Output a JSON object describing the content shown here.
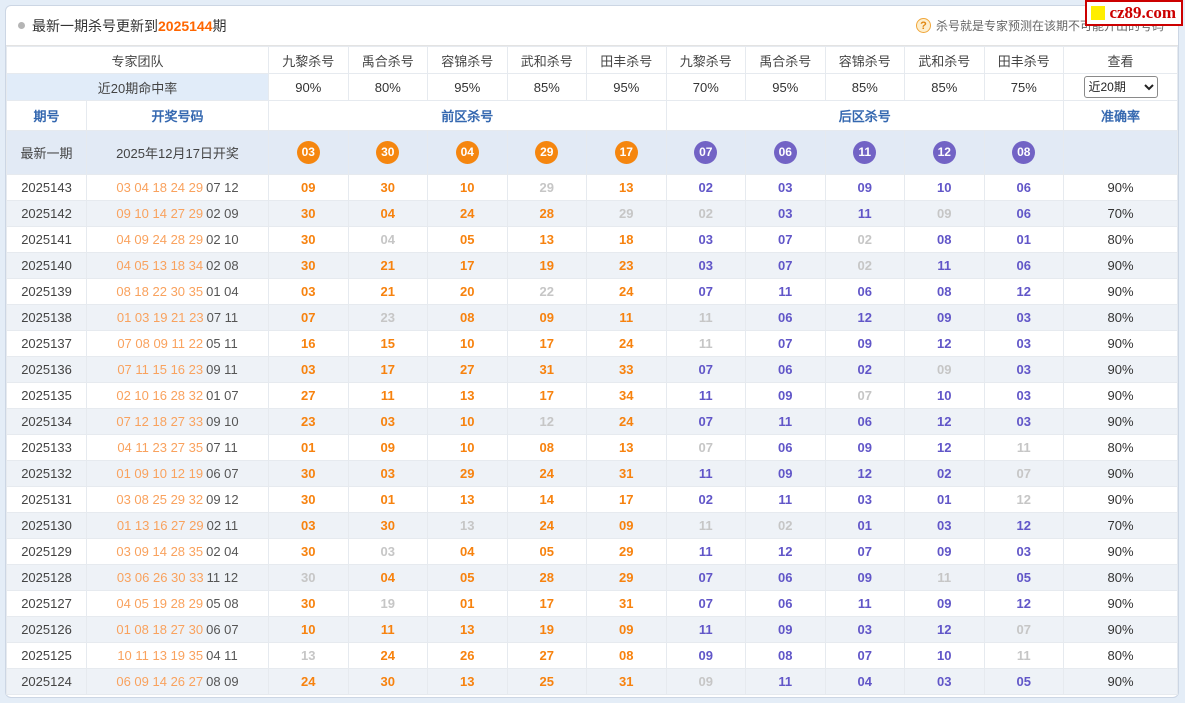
{
  "page": {
    "title_prefix": "最新一期杀号更新到",
    "title_issue": "2025144",
    "title_suffix": "期",
    "tip": "杀号就是专家预测在该期不可能开出的号码",
    "tip_icon": "?",
    "logo_text": "cz89.com"
  },
  "colors": {
    "front_hit": "#f7820e",
    "back_hit": "#6156c8",
    "miss": "#c6c6c6",
    "front_ball": "#f5860f",
    "back_ball": "#7263c5",
    "header_blue": "#3568b0",
    "accent_orange": "#ff6600"
  },
  "header": {
    "expert_team_label": "专家团队",
    "hit_rate_label": "近20期命中率",
    "view_label": "查看",
    "period_select_value": "近20期",
    "experts": [
      "九黎杀号",
      "禹合杀号",
      "容锦杀号",
      "武和杀号",
      "田丰杀号",
      "九黎杀号",
      "禹合杀号",
      "容锦杀号",
      "武和杀号",
      "田丰杀号"
    ],
    "hit_rates": [
      "90%",
      "80%",
      "95%",
      "85%",
      "95%",
      "70%",
      "95%",
      "85%",
      "85%",
      "75%"
    ],
    "issue_label": "期号",
    "draw_label": "开奖号码",
    "front_zone_label": "前区杀号",
    "back_zone_label": "后区杀号",
    "accuracy_label": "准确率"
  },
  "latest": {
    "issue_label": "最新一期",
    "draw_text": "2025年12月17日开奖",
    "front_balls": [
      "03",
      "30",
      "04",
      "29",
      "17"
    ],
    "back_balls": [
      "07",
      "06",
      "11",
      "12",
      "08"
    ]
  },
  "rows": [
    {
      "issue": "2025143",
      "front_draw": "03 04 18 24 29",
      "back_draw": "07 12",
      "front": [
        {
          "v": "09",
          "hit": true
        },
        {
          "v": "30",
          "hit": true
        },
        {
          "v": "10",
          "hit": true
        },
        {
          "v": "29",
          "hit": false
        },
        {
          "v": "13",
          "hit": true
        }
      ],
      "back": [
        {
          "v": "02",
          "hit": true
        },
        {
          "v": "03",
          "hit": true
        },
        {
          "v": "09",
          "hit": true
        },
        {
          "v": "10",
          "hit": true
        },
        {
          "v": "06",
          "hit": true
        }
      ],
      "accuracy": "90%"
    },
    {
      "issue": "2025142",
      "front_draw": "09 10 14 27 29",
      "back_draw": "02 09",
      "front": [
        {
          "v": "30",
          "hit": true
        },
        {
          "v": "04",
          "hit": true
        },
        {
          "v": "24",
          "hit": true
        },
        {
          "v": "28",
          "hit": true
        },
        {
          "v": "29",
          "hit": false
        }
      ],
      "back": [
        {
          "v": "02",
          "hit": false
        },
        {
          "v": "03",
          "hit": true
        },
        {
          "v": "11",
          "hit": true
        },
        {
          "v": "09",
          "hit": false
        },
        {
          "v": "06",
          "hit": true
        }
      ],
      "accuracy": "70%"
    },
    {
      "issue": "2025141",
      "front_draw": "04 09 24 28 29",
      "back_draw": "02 10",
      "front": [
        {
          "v": "30",
          "hit": true
        },
        {
          "v": "04",
          "hit": false
        },
        {
          "v": "05",
          "hit": true
        },
        {
          "v": "13",
          "hit": true
        },
        {
          "v": "18",
          "hit": true
        }
      ],
      "back": [
        {
          "v": "03",
          "hit": true
        },
        {
          "v": "07",
          "hit": true
        },
        {
          "v": "02",
          "hit": false
        },
        {
          "v": "08",
          "hit": true
        },
        {
          "v": "01",
          "hit": true
        }
      ],
      "accuracy": "80%"
    },
    {
      "issue": "2025140",
      "front_draw": "04 05 13 18 34",
      "back_draw": "02 08",
      "front": [
        {
          "v": "30",
          "hit": true
        },
        {
          "v": "21",
          "hit": true
        },
        {
          "v": "17",
          "hit": true
        },
        {
          "v": "19",
          "hit": true
        },
        {
          "v": "23",
          "hit": true
        }
      ],
      "back": [
        {
          "v": "03",
          "hit": true
        },
        {
          "v": "07",
          "hit": true
        },
        {
          "v": "02",
          "hit": false
        },
        {
          "v": "11",
          "hit": true
        },
        {
          "v": "06",
          "hit": true
        }
      ],
      "accuracy": "90%"
    },
    {
      "issue": "2025139",
      "front_draw": "08 18 22 30 35",
      "back_draw": "01 04",
      "front": [
        {
          "v": "03",
          "hit": true
        },
        {
          "v": "21",
          "hit": true
        },
        {
          "v": "20",
          "hit": true
        },
        {
          "v": "22",
          "hit": false
        },
        {
          "v": "24",
          "hit": true
        }
      ],
      "back": [
        {
          "v": "07",
          "hit": true
        },
        {
          "v": "11",
          "hit": true
        },
        {
          "v": "06",
          "hit": true
        },
        {
          "v": "08",
          "hit": true
        },
        {
          "v": "12",
          "hit": true
        }
      ],
      "accuracy": "90%"
    },
    {
      "issue": "2025138",
      "front_draw": "01 03 19 21 23",
      "back_draw": "07 11",
      "front": [
        {
          "v": "07",
          "hit": true
        },
        {
          "v": "23",
          "hit": false
        },
        {
          "v": "08",
          "hit": true
        },
        {
          "v": "09",
          "hit": true
        },
        {
          "v": "11",
          "hit": true
        }
      ],
      "back": [
        {
          "v": "11",
          "hit": false
        },
        {
          "v": "06",
          "hit": true
        },
        {
          "v": "12",
          "hit": true
        },
        {
          "v": "09",
          "hit": true
        },
        {
          "v": "03",
          "hit": true
        }
      ],
      "accuracy": "80%"
    },
    {
      "issue": "2025137",
      "front_draw": "07 08 09 11 22",
      "back_draw": "05 11",
      "front": [
        {
          "v": "16",
          "hit": true
        },
        {
          "v": "15",
          "hit": true
        },
        {
          "v": "10",
          "hit": true
        },
        {
          "v": "17",
          "hit": true
        },
        {
          "v": "24",
          "hit": true
        }
      ],
      "back": [
        {
          "v": "11",
          "hit": false
        },
        {
          "v": "07",
          "hit": true
        },
        {
          "v": "09",
          "hit": true
        },
        {
          "v": "12",
          "hit": true
        },
        {
          "v": "03",
          "hit": true
        }
      ],
      "accuracy": "90%"
    },
    {
      "issue": "2025136",
      "front_draw": "07 11 15 16 23",
      "back_draw": "09 11",
      "front": [
        {
          "v": "03",
          "hit": true
        },
        {
          "v": "17",
          "hit": true
        },
        {
          "v": "27",
          "hit": true
        },
        {
          "v": "31",
          "hit": true
        },
        {
          "v": "33",
          "hit": true
        }
      ],
      "back": [
        {
          "v": "07",
          "hit": true
        },
        {
          "v": "06",
          "hit": true
        },
        {
          "v": "02",
          "hit": true
        },
        {
          "v": "09",
          "hit": false
        },
        {
          "v": "03",
          "hit": true
        }
      ],
      "accuracy": "90%"
    },
    {
      "issue": "2025135",
      "front_draw": "02 10 16 28 32",
      "back_draw": "01 07",
      "front": [
        {
          "v": "27",
          "hit": true
        },
        {
          "v": "11",
          "hit": true
        },
        {
          "v": "13",
          "hit": true
        },
        {
          "v": "17",
          "hit": true
        },
        {
          "v": "34",
          "hit": true
        }
      ],
      "back": [
        {
          "v": "11",
          "hit": true
        },
        {
          "v": "09",
          "hit": true
        },
        {
          "v": "07",
          "hit": false
        },
        {
          "v": "10",
          "hit": true
        },
        {
          "v": "03",
          "hit": true
        }
      ],
      "accuracy": "90%"
    },
    {
      "issue": "2025134",
      "front_draw": "07 12 18 27 33",
      "back_draw": "09 10",
      "front": [
        {
          "v": "23",
          "hit": true
        },
        {
          "v": "03",
          "hit": true
        },
        {
          "v": "10",
          "hit": true
        },
        {
          "v": "12",
          "hit": false
        },
        {
          "v": "24",
          "hit": true
        }
      ],
      "back": [
        {
          "v": "07",
          "hit": true
        },
        {
          "v": "11",
          "hit": true
        },
        {
          "v": "06",
          "hit": true
        },
        {
          "v": "12",
          "hit": true
        },
        {
          "v": "03",
          "hit": true
        }
      ],
      "accuracy": "90%"
    },
    {
      "issue": "2025133",
      "front_draw": "04 11 23 27 35",
      "back_draw": "07 11",
      "front": [
        {
          "v": "01",
          "hit": true
        },
        {
          "v": "09",
          "hit": true
        },
        {
          "v": "10",
          "hit": true
        },
        {
          "v": "08",
          "hit": true
        },
        {
          "v": "13",
          "hit": true
        }
      ],
      "back": [
        {
          "v": "07",
          "hit": false
        },
        {
          "v": "06",
          "hit": true
        },
        {
          "v": "09",
          "hit": true
        },
        {
          "v": "12",
          "hit": true
        },
        {
          "v": "11",
          "hit": false
        }
      ],
      "accuracy": "80%"
    },
    {
      "issue": "2025132",
      "front_draw": "01 09 10 12 19",
      "back_draw": "06 07",
      "front": [
        {
          "v": "30",
          "hit": true
        },
        {
          "v": "03",
          "hit": true
        },
        {
          "v": "29",
          "hit": true
        },
        {
          "v": "24",
          "hit": true
        },
        {
          "v": "31",
          "hit": true
        }
      ],
      "back": [
        {
          "v": "11",
          "hit": true
        },
        {
          "v": "09",
          "hit": true
        },
        {
          "v": "12",
          "hit": true
        },
        {
          "v": "02",
          "hit": true
        },
        {
          "v": "07",
          "hit": false
        }
      ],
      "accuracy": "90%"
    },
    {
      "issue": "2025131",
      "front_draw": "03 08 25 29 32",
      "back_draw": "09 12",
      "front": [
        {
          "v": "30",
          "hit": true
        },
        {
          "v": "01",
          "hit": true
        },
        {
          "v": "13",
          "hit": true
        },
        {
          "v": "14",
          "hit": true
        },
        {
          "v": "17",
          "hit": true
        }
      ],
      "back": [
        {
          "v": "02",
          "hit": true
        },
        {
          "v": "11",
          "hit": true
        },
        {
          "v": "03",
          "hit": true
        },
        {
          "v": "01",
          "hit": true
        },
        {
          "v": "12",
          "hit": false
        }
      ],
      "accuracy": "90%"
    },
    {
      "issue": "2025130",
      "front_draw": "01 13 16 27 29",
      "back_draw": "02 11",
      "front": [
        {
          "v": "03",
          "hit": true
        },
        {
          "v": "30",
          "hit": true
        },
        {
          "v": "13",
          "hit": false
        },
        {
          "v": "24",
          "hit": true
        },
        {
          "v": "09",
          "hit": true
        }
      ],
      "back": [
        {
          "v": "11",
          "hit": false
        },
        {
          "v": "02",
          "hit": false
        },
        {
          "v": "01",
          "hit": true
        },
        {
          "v": "03",
          "hit": true
        },
        {
          "v": "12",
          "hit": true
        }
      ],
      "accuracy": "70%"
    },
    {
      "issue": "2025129",
      "front_draw": "03 09 14 28 35",
      "back_draw": "02 04",
      "front": [
        {
          "v": "30",
          "hit": true
        },
        {
          "v": "03",
          "hit": false
        },
        {
          "v": "04",
          "hit": true
        },
        {
          "v": "05",
          "hit": true
        },
        {
          "v": "29",
          "hit": true
        }
      ],
      "back": [
        {
          "v": "11",
          "hit": true
        },
        {
          "v": "12",
          "hit": true
        },
        {
          "v": "07",
          "hit": true
        },
        {
          "v": "09",
          "hit": true
        },
        {
          "v": "03",
          "hit": true
        }
      ],
      "accuracy": "90%"
    },
    {
      "issue": "2025128",
      "front_draw": "03 06 26 30 33",
      "back_draw": "11 12",
      "front": [
        {
          "v": "30",
          "hit": false
        },
        {
          "v": "04",
          "hit": true
        },
        {
          "v": "05",
          "hit": true
        },
        {
          "v": "28",
          "hit": true
        },
        {
          "v": "29",
          "hit": true
        }
      ],
      "back": [
        {
          "v": "07",
          "hit": true
        },
        {
          "v": "06",
          "hit": true
        },
        {
          "v": "09",
          "hit": true
        },
        {
          "v": "11",
          "hit": false
        },
        {
          "v": "05",
          "hit": true
        }
      ],
      "accuracy": "80%"
    },
    {
      "issue": "2025127",
      "front_draw": "04 05 19 28 29",
      "back_draw": "05 08",
      "front": [
        {
          "v": "30",
          "hit": true
        },
        {
          "v": "19",
          "hit": false
        },
        {
          "v": "01",
          "hit": true
        },
        {
          "v": "17",
          "hit": true
        },
        {
          "v": "31",
          "hit": true
        }
      ],
      "back": [
        {
          "v": "07",
          "hit": true
        },
        {
          "v": "06",
          "hit": true
        },
        {
          "v": "11",
          "hit": true
        },
        {
          "v": "09",
          "hit": true
        },
        {
          "v": "12",
          "hit": true
        }
      ],
      "accuracy": "90%"
    },
    {
      "issue": "2025126",
      "front_draw": "01 08 18 27 30",
      "back_draw": "06 07",
      "front": [
        {
          "v": "10",
          "hit": true
        },
        {
          "v": "11",
          "hit": true
        },
        {
          "v": "13",
          "hit": true
        },
        {
          "v": "19",
          "hit": true
        },
        {
          "v": "09",
          "hit": true
        }
      ],
      "back": [
        {
          "v": "11",
          "hit": true
        },
        {
          "v": "09",
          "hit": true
        },
        {
          "v": "03",
          "hit": true
        },
        {
          "v": "12",
          "hit": true
        },
        {
          "v": "07",
          "hit": false
        }
      ],
      "accuracy": "90%"
    },
    {
      "issue": "2025125",
      "front_draw": "10 11 13 19 35",
      "back_draw": "04 11",
      "front": [
        {
          "v": "13",
          "hit": false
        },
        {
          "v": "24",
          "hit": true
        },
        {
          "v": "26",
          "hit": true
        },
        {
          "v": "27",
          "hit": true
        },
        {
          "v": "08",
          "hit": true
        }
      ],
      "back": [
        {
          "v": "09",
          "hit": true
        },
        {
          "v": "08",
          "hit": true
        },
        {
          "v": "07",
          "hit": true
        },
        {
          "v": "10",
          "hit": true
        },
        {
          "v": "11",
          "hit": false
        }
      ],
      "accuracy": "80%"
    },
    {
      "issue": "2025124",
      "front_draw": "06 09 14 26 27",
      "back_draw": "08 09",
      "front": [
        {
          "v": "24",
          "hit": true
        },
        {
          "v": "30",
          "hit": true
        },
        {
          "v": "13",
          "hit": true
        },
        {
          "v": "25",
          "hit": true
        },
        {
          "v": "31",
          "hit": true
        }
      ],
      "back": [
        {
          "v": "09",
          "hit": false
        },
        {
          "v": "11",
          "hit": true
        },
        {
          "v": "04",
          "hit": true
        },
        {
          "v": "03",
          "hit": true
        },
        {
          "v": "05",
          "hit": true
        }
      ],
      "accuracy": "90%"
    }
  ]
}
